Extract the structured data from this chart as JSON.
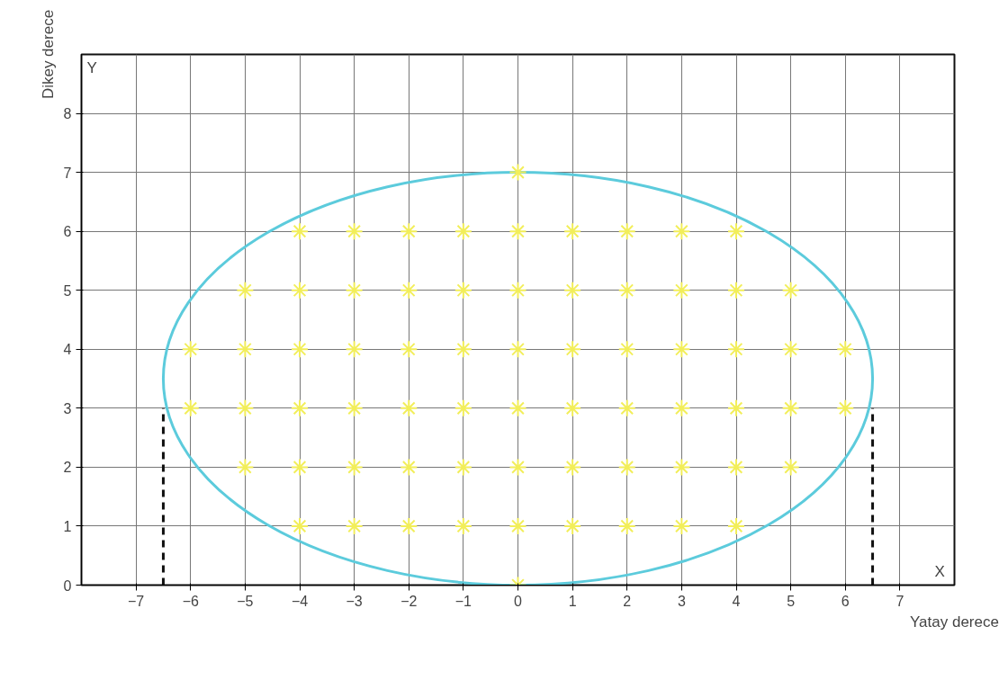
{
  "chart_data": {
    "type": "scatter",
    "xlabel": "Yatay derece",
    "ylabel": "Dikey derece",
    "annotations": [
      "Y",
      "X"
    ],
    "xlim": [
      -8,
      8
    ],
    "ylim": [
      0,
      9
    ],
    "xticks": [
      -7,
      -6,
      -5,
      -4,
      -3,
      -2,
      -1,
      0,
      1,
      2,
      3,
      4,
      5,
      6,
      7
    ],
    "yticks": [
      0,
      1,
      2,
      3,
      4,
      5,
      6,
      7,
      8
    ],
    "grid": true,
    "series": [
      {
        "color": "#f2ee5a",
        "marker": "cross",
        "x": [
          0,
          -4,
          -3,
          -2,
          -1,
          0,
          1,
          2,
          3,
          4,
          -5,
          -4,
          -3,
          -2,
          -1,
          0,
          1,
          2,
          3,
          4,
          5,
          -6,
          -5,
          -4,
          -3,
          -2,
          -1,
          0,
          1,
          2,
          3,
          4,
          5,
          6,
          -6,
          -5,
          -4,
          -3,
          -2,
          -1,
          0,
          1,
          2,
          3,
          4,
          5,
          6,
          -5,
          -4,
          -3,
          -2,
          -1,
          0,
          1,
          2,
          3,
          4,
          5,
          -4,
          -3,
          -2,
          -1,
          0,
          1,
          2,
          3,
          4,
          0
        ],
        "values": [
          7,
          6,
          6,
          6,
          6,
          6,
          6,
          6,
          6,
          6,
          5,
          5,
          5,
          5,
          5,
          5,
          5,
          5,
          5,
          5,
          5,
          4,
          4,
          4,
          4,
          4,
          4,
          4,
          4,
          4,
          4,
          4,
          4,
          4,
          3,
          3,
          3,
          3,
          3,
          3,
          3,
          3,
          3,
          3,
          3,
          3,
          3,
          2,
          2,
          2,
          2,
          2,
          2,
          2,
          2,
          2,
          2,
          2,
          1,
          1,
          1,
          1,
          1,
          1,
          1,
          1,
          1,
          0
        ]
      },
      {
        "type": "line",
        "color": "#111111",
        "line_style": "dashed",
        "x": [
          -6.5,
          -6.5
        ],
        "values": [
          0,
          3
        ]
      },
      {
        "type": "line",
        "color": "#111111",
        "line_style": "dashed",
        "x": [
          6.5,
          6.5
        ],
        "values": [
          0,
          3
        ]
      }
    ]
  }
}
